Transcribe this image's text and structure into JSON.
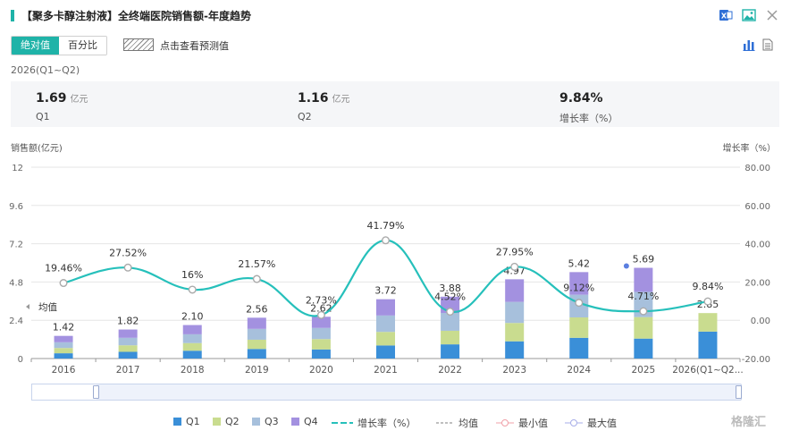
{
  "header": {
    "title": "【聚多卡醇注射液】全终端医院销售额-年度趋势"
  },
  "toolbar": {
    "tabs": [
      {
        "label": "绝对值",
        "active": true
      },
      {
        "label": "百分比",
        "active": false
      }
    ],
    "forecast_label": "点击查看预测值"
  },
  "summary": {
    "period": "2026(Q1~Q2)",
    "stats": [
      {
        "value": "1.69",
        "unit": "亿元",
        "label": "Q1"
      },
      {
        "value": "1.16",
        "unit": "亿元",
        "label": "Q2"
      },
      {
        "value": "9.84%",
        "unit": "",
        "label": "增长率（%）"
      }
    ]
  },
  "chart_data": {
    "type": "bar",
    "stacked": true,
    "categories": [
      "2016",
      "2017",
      "2018",
      "2019",
      "2020",
      "2021",
      "2022",
      "2023",
      "2024",
      "2025",
      "2026(Q1~Q2..."
    ],
    "ylabel_left": "销售额(亿元)",
    "ylabel_right": "增长率（%）",
    "y_left_ticks": [
      "0",
      "2.4",
      "4.8",
      "7.2",
      "9.6",
      "12"
    ],
    "y_left_range": [
      0,
      12
    ],
    "y_right_ticks": [
      "-20.00",
      "0.00",
      "20.00",
      "40.00",
      "60.00",
      "80.00"
    ],
    "y_right_range": [
      -20,
      80
    ],
    "colors": {
      "Q1": "#3a8fd8",
      "Q2": "#c9dc8f",
      "Q3": "#a7c0dc",
      "Q4": "#a391e0",
      "growth": "#26c0bb"
    },
    "series": [
      {
        "name": "Q1",
        "values": [
          0.33,
          0.42,
          0.49,
          0.6,
          0.57,
          0.82,
          0.89,
          1.08,
          1.3,
          1.25,
          1.69
        ]
      },
      {
        "name": "Q2",
        "values": [
          0.33,
          0.41,
          0.48,
          0.58,
          0.65,
          0.85,
          0.85,
          1.15,
          1.28,
          1.35,
          1.16
        ]
      },
      {
        "name": "Q3",
        "values": [
          0.36,
          0.47,
          0.55,
          0.68,
          0.7,
          1.03,
          1.12,
          1.32,
          1.42,
          1.58,
          0
        ]
      },
      {
        "name": "Q4",
        "values": [
          0.4,
          0.52,
          0.58,
          0.7,
          0.7,
          1.02,
          1.02,
          1.42,
          1.42,
          1.51,
          0
        ]
      }
    ],
    "totals": [
      "1.42",
      "1.82",
      "2.10",
      "2.56",
      "2.62",
      "3.72",
      "3.88",
      "4.97",
      "5.42",
      "5.69",
      "2.85"
    ],
    "growth": {
      "name": "增长率（%）",
      "values": [
        19.46,
        27.52,
        16,
        21.57,
        2.73,
        41.79,
        4.52,
        27.95,
        9.12,
        4.71,
        9.84
      ],
      "labels": [
        "19.46%",
        "27.52%",
        "16%",
        "21.57%",
        "2.73%",
        "41.79%",
        "4.52%",
        "27.95%",
        "9.12%",
        "4.71%",
        "9.84%"
      ]
    },
    "mean_label": "均值",
    "legend": [
      "Q1",
      "Q2",
      "Q3",
      "Q4",
      "增长率（%）",
      "均值",
      "最小值",
      "最大值"
    ],
    "legend_position": "bottom"
  },
  "watermark": "格隆汇"
}
